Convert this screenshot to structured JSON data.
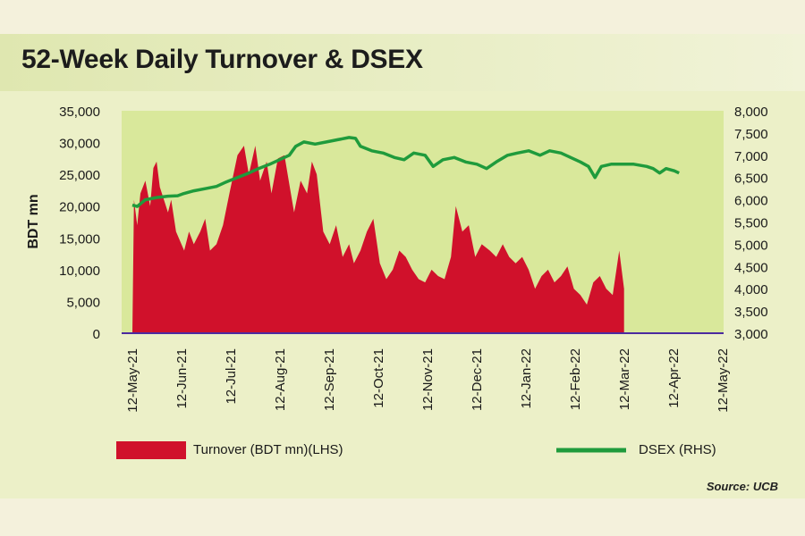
{
  "chart_data": {
    "type": "area+line",
    "title": "52-Week Daily Turnover & DSEX",
    "ylabel": "BDT mn",
    "ylim_left": [
      0,
      35000
    ],
    "ylim_right": [
      3000,
      8000
    ],
    "yticks_left": [
      "0",
      "5,000",
      "10,000",
      "15,000",
      "20,000",
      "25,000",
      "30,000",
      "35,000"
    ],
    "yticks_right": [
      "3,000",
      "3,500",
      "4,000",
      "4,500",
      "5,000",
      "5,500",
      "6,000",
      "6,500",
      "7,000",
      "7,500",
      "8,000"
    ],
    "xticks": [
      "12-May-21",
      "12-Jun-21",
      "12-Jul-21",
      "12-Aug-21",
      "12-Sep-21",
      "12-Oct-21",
      "12-Nov-21",
      "12-Dec-21",
      "12-Jan-22",
      "12-Feb-22",
      "12-Mar-22",
      "12-Apr-22",
      "12-May-22"
    ],
    "series": [
      {
        "name": "Turnover (BDT mn)(LHS)",
        "color": "#d0112b",
        "axis": "left",
        "values": [
          0,
          21000,
          17000,
          22000,
          24000,
          20000,
          26000,
          27000,
          23000,
          19000,
          21000,
          16000,
          13000,
          16000,
          14000,
          16000,
          18000,
          13000,
          14000,
          17000,
          22000,
          28000,
          29500,
          25000,
          29500,
          24000,
          27000,
          22000,
          27500,
          28000,
          22000,
          19000,
          24000,
          22000,
          27000,
          25000,
          16000,
          14000,
          17000,
          12000,
          14000,
          11000,
          13000,
          16000,
          18000,
          11000,
          8500,
          10000,
          13000,
          12000,
          10000,
          8500,
          8000,
          10000,
          9000,
          8500,
          12000,
          20000,
          16000,
          17000,
          12000,
          14000,
          13000,
          12000,
          14000,
          12000,
          11000,
          12000,
          10000,
          7000,
          9000,
          10000,
          8000,
          9000,
          10500,
          7000,
          6000,
          4500,
          8000,
          9000,
          7000,
          6000,
          13000,
          7000
        ],
        "x_days": [
          0,
          1,
          3,
          5,
          8,
          11,
          13,
          15,
          17,
          22,
          24,
          27,
          32,
          35,
          38,
          42,
          45,
          48,
          52,
          56,
          60,
          65,
          69,
          72,
          76,
          79,
          83,
          86,
          90,
          94,
          98,
          100,
          104,
          108,
          111,
          114,
          118,
          122,
          126,
          130,
          134,
          137,
          141,
          145,
          149,
          153,
          157,
          161,
          165,
          169,
          173,
          177,
          181,
          185,
          189,
          193,
          197,
          200,
          204,
          208,
          212,
          216,
          221,
          225,
          229,
          233,
          237,
          241,
          245,
          249,
          253,
          257,
          261,
          265,
          269,
          273,
          277,
          281,
          285,
          289,
          293,
          297,
          301,
          304
        ]
      },
      {
        "name": "DSEX (RHS)",
        "color": "#1f9b3c",
        "axis": "right",
        "values": [
          5880,
          5850,
          6000,
          6050,
          6080,
          6090,
          6130,
          6200,
          6250,
          6300,
          6400,
          6500,
          6600,
          6700,
          6800,
          6900,
          7000,
          7200,
          7300,
          7250,
          7300,
          7350,
          7400,
          7380,
          7200,
          7100,
          7050,
          6950,
          6900,
          7050,
          7000,
          6750,
          6900,
          6950,
          6850,
          6800,
          6700,
          6850,
          7000,
          7050,
          7100,
          7000,
          7100,
          7050,
          6950,
          6850,
          6750,
          6500,
          6750,
          6800,
          6800,
          6750,
          6700,
          6600,
          6700,
          6650,
          6600
        ],
        "x_days": [
          0,
          3,
          8,
          15,
          22,
          28,
          31,
          38,
          45,
          52,
          58,
          65,
          72,
          78,
          85,
          91,
          97,
          101,
          106,
          113,
          120,
          127,
          134,
          138,
          141,
          148,
          155,
          162,
          168,
          174,
          181,
          186,
          192,
          199,
          206,
          213,
          219,
          225,
          232,
          238,
          245,
          252,
          258,
          265,
          271,
          277,
          282,
          286,
          290,
          296,
          310,
          318,
          322,
          326,
          330,
          335,
          338
        ]
      }
    ],
    "legend": "bottom",
    "annotation": "Source: UCB"
  },
  "legend_items": [
    "Turnover (BDT mn)(LHS)",
    "DSEX (RHS)"
  ]
}
